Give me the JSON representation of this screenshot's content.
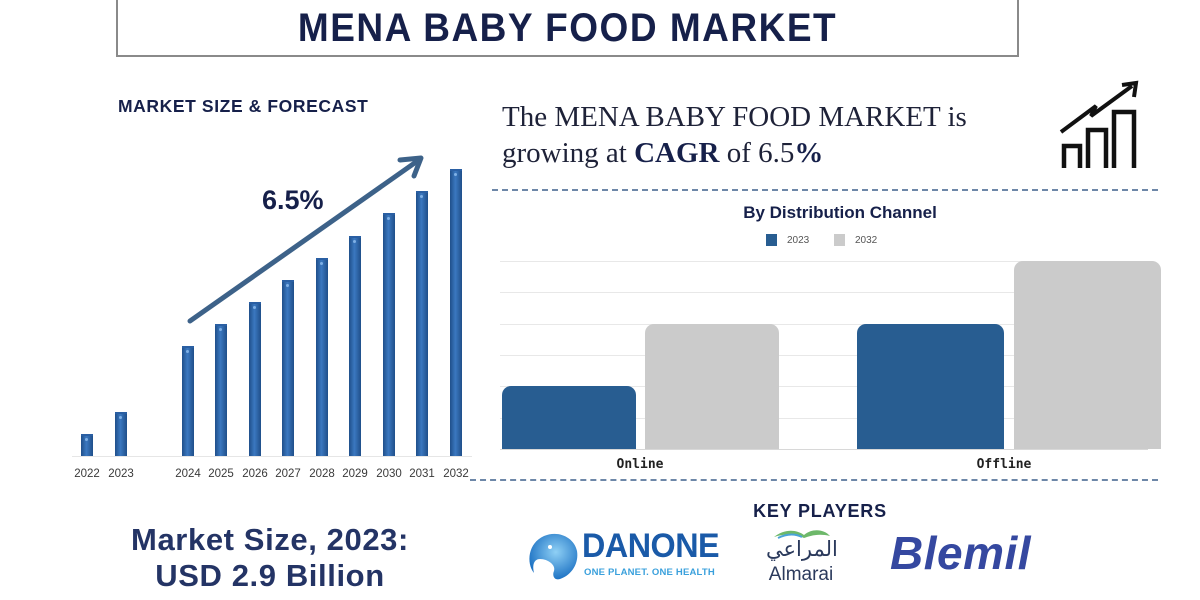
{
  "header": {
    "title": "MENA BABY FOOD MARKET"
  },
  "left_panel": {
    "heading": "MARKET SIZE & FORECAST",
    "cagr_label": "6.5%",
    "market_size_line1": "Market Size, 2023:",
    "market_size_line2": "USD 2.9 Billion"
  },
  "right_panel": {
    "headline_part1": "The MENA BABY FOOD MARKET is",
    "headline_part2": "growing at ",
    "headline_bold": "CAGR",
    "headline_part3": " of 6.5",
    "headline_pct": "%",
    "growth_icon": "bar-chart-growth-icon",
    "distribution_title": "By Distribution Channel",
    "legend": [
      {
        "label": "2023",
        "color": "#285d91"
      },
      {
        "label": "2032",
        "color": "#cbcbcb"
      }
    ]
  },
  "key_players": {
    "title": "KEY PLAYERS",
    "players": [
      {
        "name": "DANONE",
        "tagline": "ONE PLANET. ONE HEALTH"
      },
      {
        "name": "Almarai",
        "name_ar": "المراعي"
      },
      {
        "name": "Blemil"
      }
    ]
  },
  "colors": {
    "navy": "#16204a",
    "bar_blue": "#2a5fa3",
    "dist_2023": "#285d91",
    "dist_2032": "#cbcbcb",
    "dash": "#6d87a8"
  },
  "chart_data": [
    {
      "type": "bar",
      "title": "MARKET SIZE & FORECAST",
      "categories": [
        "2022",
        "2023",
        "2024",
        "2025",
        "2026",
        "2027",
        "2028",
        "2029",
        "2030",
        "2031",
        "2032"
      ],
      "values": [
        22,
        44,
        110,
        132,
        154,
        176,
        198,
        220,
        243,
        265,
        287
      ],
      "annotations": [
        "6.5% (CAGR arrow)"
      ],
      "xlabel": "",
      "ylabel": "",
      "grid": false,
      "legend": "none",
      "note": "relative bar heights, no y-axis shown"
    },
    {
      "type": "bar",
      "title": "By Distribution Channel",
      "categories": [
        "Online",
        "Offline"
      ],
      "series": [
        {
          "name": "2023",
          "values": [
            2,
            4
          ]
        },
        {
          "name": "2032",
          "values": [
            4,
            6
          ]
        }
      ],
      "ylim": [
        0,
        6
      ],
      "grid": true,
      "legend": "top",
      "xlabel": "",
      "ylabel": "",
      "note": "relative units by gridlines, no y-axis labels shown"
    }
  ]
}
